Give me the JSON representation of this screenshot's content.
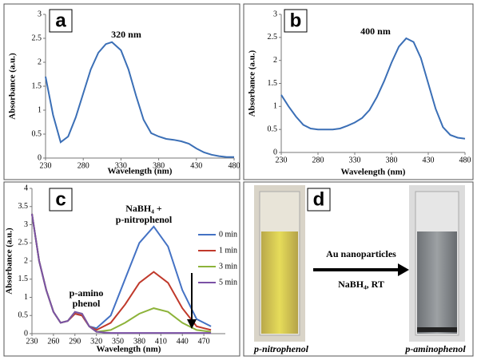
{
  "chart_data": [
    {
      "type": "line",
      "panel_label": "a",
      "annotations": [
        "320 nm"
      ],
      "x_label": "Wavelength (nm)",
      "y_label": "Absorbance (a.u.)",
      "x": [
        230,
        240,
        250,
        260,
        270,
        280,
        290,
        300,
        310,
        318,
        330,
        340,
        350,
        360,
        370,
        380,
        390,
        400,
        410,
        420,
        430,
        440,
        450,
        460,
        470,
        480
      ],
      "series": [
        {
          "color": "#3b6fb6",
          "values": [
            1.7,
            0.9,
            0.33,
            0.45,
            0.85,
            1.35,
            1.85,
            2.2,
            2.38,
            2.42,
            2.25,
            1.85,
            1.3,
            0.8,
            0.52,
            0.45,
            0.4,
            0.38,
            0.35,
            0.3,
            0.2,
            0.12,
            0.07,
            0.04,
            0.02,
            0.02
          ]
        }
      ],
      "xlim": [
        230,
        480
      ],
      "xticks": [
        230,
        280,
        330,
        380,
        430,
        480
      ],
      "ylim": [
        0,
        3
      ],
      "yticks": [
        0,
        0.5,
        1,
        1.5,
        2,
        2.5,
        3
      ]
    },
    {
      "type": "line",
      "panel_label": "b",
      "annotations": [
        "400 nm"
      ],
      "x_label": "Wavelength (nm)",
      "y_label": "Absorbance (a.u.)",
      "x": [
        230,
        240,
        250,
        260,
        270,
        280,
        290,
        300,
        310,
        320,
        330,
        340,
        350,
        360,
        370,
        380,
        390,
        400,
        410,
        420,
        430,
        440,
        450,
        460,
        470,
        480
      ],
      "series": [
        {
          "color": "#3b6fb6",
          "values": [
            1.25,
            1.0,
            0.78,
            0.6,
            0.52,
            0.5,
            0.5,
            0.5,
            0.52,
            0.58,
            0.65,
            0.75,
            0.92,
            1.2,
            1.55,
            1.95,
            2.3,
            2.48,
            2.4,
            2.05,
            1.5,
            0.95,
            0.55,
            0.38,
            0.32,
            0.3
          ]
        }
      ],
      "xlim": [
        230,
        480
      ],
      "xticks": [
        230,
        280,
        330,
        380,
        430,
        480
      ],
      "ylim": [
        0,
        3
      ],
      "yticks": [
        0,
        0.5,
        1,
        1.5,
        2,
        2.5,
        3
      ]
    },
    {
      "type": "line",
      "panel_label": "c",
      "annotations": [
        "NaBH₄ +",
        "p-nitrophenol",
        "p-amino",
        "phenol"
      ],
      "x_label": "Wavelength (nm)",
      "y_label": "Absorbance (a.u.)",
      "x": [
        230,
        240,
        250,
        260,
        270,
        280,
        290,
        300,
        310,
        320,
        340,
        360,
        380,
        400,
        420,
        440,
        460,
        480
      ],
      "series": [
        {
          "name": "0 min",
          "color": "#4472c4",
          "values": [
            3.3,
            2.0,
            1.2,
            0.6,
            0.3,
            0.35,
            0.55,
            0.5,
            0.2,
            0.15,
            0.5,
            1.5,
            2.5,
            2.95,
            2.4,
            1.2,
            0.4,
            0.2
          ]
        },
        {
          "name": "1 min",
          "color": "#c0392b",
          "values": [
            3.3,
            2.0,
            1.2,
            0.6,
            0.3,
            0.35,
            0.55,
            0.5,
            0.2,
            0.1,
            0.3,
            0.8,
            1.4,
            1.7,
            1.4,
            0.7,
            0.2,
            0.1
          ]
        },
        {
          "name": "3 min",
          "color": "#8db33a",
          "values": [
            3.3,
            2.0,
            1.2,
            0.6,
            0.3,
            0.35,
            0.6,
            0.55,
            0.2,
            0.05,
            0.1,
            0.3,
            0.55,
            0.7,
            0.6,
            0.3,
            0.1,
            0.05
          ]
        },
        {
          "name": "5 min",
          "color": "#7b52a6",
          "values": [
            3.3,
            2.0,
            1.2,
            0.6,
            0.3,
            0.35,
            0.6,
            0.55,
            0.2,
            0.05,
            0.02,
            0.02,
            0.02,
            0.02,
            0.02,
            0.02,
            0.02,
            0.02
          ]
        }
      ],
      "xlim": [
        230,
        500
      ],
      "xticks": [
        230,
        260,
        290,
        320,
        350,
        380,
        410,
        440,
        470
      ],
      "ylim": [
        0,
        4
      ],
      "yticks": [
        0,
        0.5,
        1,
        1.5,
        2,
        2.5,
        3,
        3.5,
        4
      ]
    }
  ],
  "panel_d": {
    "label": "d",
    "arrow_top": "Au nanoparticles",
    "arrow_bottom": "NaBH₄, RT",
    "left_caption": "p-nitrophenol",
    "right_caption": "p-aminophenol"
  }
}
